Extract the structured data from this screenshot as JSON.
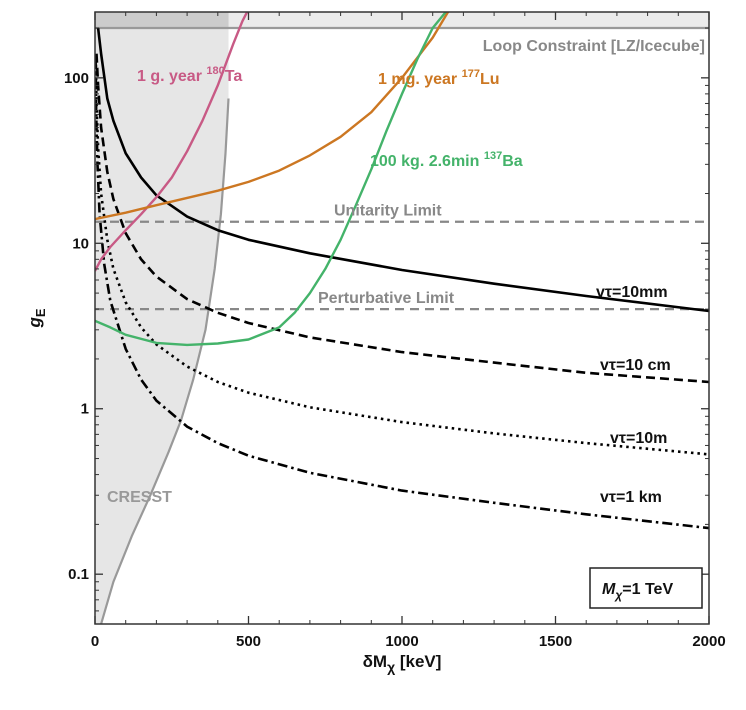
{
  "chart_data": {
    "type": "line",
    "xlabel": {
      "prefix": "δM",
      "sub": "χ",
      "suffix": " [keV]"
    },
    "ylabel": {
      "main": "g",
      "sub": "E"
    },
    "xlim": [
      0,
      2000
    ],
    "ylim": [
      0.05,
      250
    ],
    "yscale": "log",
    "grid": false,
    "x_ticks": [
      0,
      500,
      1000,
      1500,
      2000
    ],
    "y_ticks": [
      {
        "value": 0.1,
        "label": "0.1"
      },
      {
        "value": 1,
        "label": "1"
      },
      {
        "value": 10,
        "label": "10"
      },
      {
        "value": 100,
        "label": "100"
      }
    ],
    "regions": [
      {
        "name": "CRESST",
        "label": "CRESST",
        "color": "#e6e6e6",
        "boundary_x": [
          20,
          60,
          120,
          180,
          240,
          280,
          320,
          360,
          390,
          410,
          425,
          435
        ],
        "boundary_y": [
          0.05,
          0.09,
          0.17,
          0.3,
          0.55,
          0.85,
          1.5,
          3,
          7,
          15,
          35,
          75
        ]
      },
      {
        "name": "loop-constraint",
        "label": "Loop Constraint [LZ/Icecube]",
        "color": "#cccccc",
        "y_from": 200,
        "y_to": 250
      }
    ],
    "hlines": [
      {
        "name": "unitarity-limit",
        "label": "Unitarity Limit",
        "y": 13.5,
        "color": "#888888",
        "style": "dashed"
      },
      {
        "name": "perturbative-limit",
        "label": "Perturbative Limit",
        "y": 4,
        "color": "#888888",
        "style": "dashed"
      }
    ],
    "series": [
      {
        "name": "vτ=10mm",
        "style": "solid",
        "color": "#000000",
        "x": [
          10,
          20,
          40,
          60,
          100,
          150,
          200,
          300,
          400,
          500,
          700,
          1000,
          1300,
          1600,
          2000
        ],
        "y": [
          200,
          140,
          75,
          55,
          35,
          25,
          19.5,
          14.5,
          12,
          10.5,
          8.7,
          6.9,
          5.7,
          4.8,
          3.9
        ]
      },
      {
        "name": "vτ=10 cm",
        "style": "dashed",
        "color": "#000000",
        "x": [
          5,
          10,
          20,
          40,
          60,
          100,
          150,
          200,
          300,
          400,
          500,
          700,
          1000,
          1300,
          1600,
          2000
        ],
        "y": [
          140,
          90,
          50,
          27,
          18.5,
          11.5,
          8,
          6.3,
          4.6,
          3.8,
          3.3,
          2.7,
          2.2,
          1.9,
          1.65,
          1.45
        ]
      },
      {
        "name": "vτ=10m",
        "style": "dotted",
        "color": "#000000",
        "x": [
          3,
          5,
          10,
          20,
          40,
          60,
          100,
          150,
          200,
          300,
          400,
          500,
          700,
          1000,
          1300,
          1600,
          2000
        ],
        "y": [
          120,
          70,
          38,
          20,
          10.5,
          7,
          4.4,
          3.1,
          2.45,
          1.8,
          1.45,
          1.25,
          1.02,
          0.83,
          0.71,
          0.62,
          0.53
        ]
      },
      {
        "name": "vτ=1 km",
        "style": "dashdot",
        "color": "#000000",
        "x": [
          2,
          4,
          8,
          15,
          30,
          50,
          100,
          150,
          200,
          300,
          400,
          500,
          700,
          1000,
          1300,
          1600,
          2000
        ],
        "y": [
          130,
          60,
          30,
          15,
          7.5,
          4.5,
          2.3,
          1.5,
          1.12,
          0.78,
          0.62,
          0.52,
          0.41,
          0.32,
          0.27,
          0.23,
          0.19
        ]
      },
      {
        "name": "1 g. year 180Ta",
        "style": "solid",
        "color": "#c85a85",
        "x": [
          0,
          20,
          50,
          100,
          150,
          200,
          250,
          300,
          350,
          400,
          450,
          480,
          500
        ],
        "y": [
          6.8,
          8,
          9.5,
          12,
          15,
          19,
          25,
          36,
          55,
          90,
          160,
          220,
          260
        ]
      },
      {
        "name": "1 mg. year 177Lu",
        "style": "solid",
        "color": "#cc7722",
        "x": [
          0,
          100,
          200,
          300,
          400,
          500,
          600,
          700,
          800,
          900,
          1000,
          1100,
          1150
        ],
        "y": [
          14,
          15.3,
          17,
          18.8,
          20.8,
          23.5,
          27.5,
          34,
          44,
          62,
          100,
          175,
          250
        ]
      },
      {
        "name": "100 kg. 2.6min 137Ba",
        "style": "solid",
        "color": "#44b36a",
        "x": [
          0,
          50,
          100,
          200,
          300,
          400,
          500,
          600,
          650,
          700,
          750,
          800,
          850,
          900,
          950,
          1000,
          1050,
          1100,
          1150
        ],
        "y": [
          3.4,
          3.1,
          2.8,
          2.5,
          2.43,
          2.48,
          2.62,
          3.1,
          3.8,
          5,
          7,
          10.5,
          17,
          28,
          48,
          80,
          130,
          200,
          260
        ]
      }
    ],
    "annotations": [
      {
        "name": "ta-label",
        "text": "1 g. year ",
        "sup": "180",
        "after": "Ta",
        "color": "#c85a85"
      },
      {
        "name": "lu-label",
        "text": "1 mg. year ",
        "sup": "177",
        "after": "Lu",
        "color": "#cc7722"
      },
      {
        "name": "ba-label",
        "text": "100 kg. 2.6min ",
        "sup": "137",
        "after": "Ba",
        "color": "#44b36a"
      },
      {
        "name": "tau-10mm-label",
        "text": "vτ=10mm",
        "color": "#111111"
      },
      {
        "name": "tau-10cm-label",
        "text": "vτ=10 cm",
        "color": "#111111"
      },
      {
        "name": "tau-10m-label",
        "text": "vτ=10m",
        "color": "#111111"
      },
      {
        "name": "tau-1km-label",
        "text": "vτ=1 km",
        "color": "#111111"
      }
    ],
    "mass_box": {
      "prefix": "M",
      "sub": "χ",
      "suffix": "=1 TeV"
    }
  }
}
